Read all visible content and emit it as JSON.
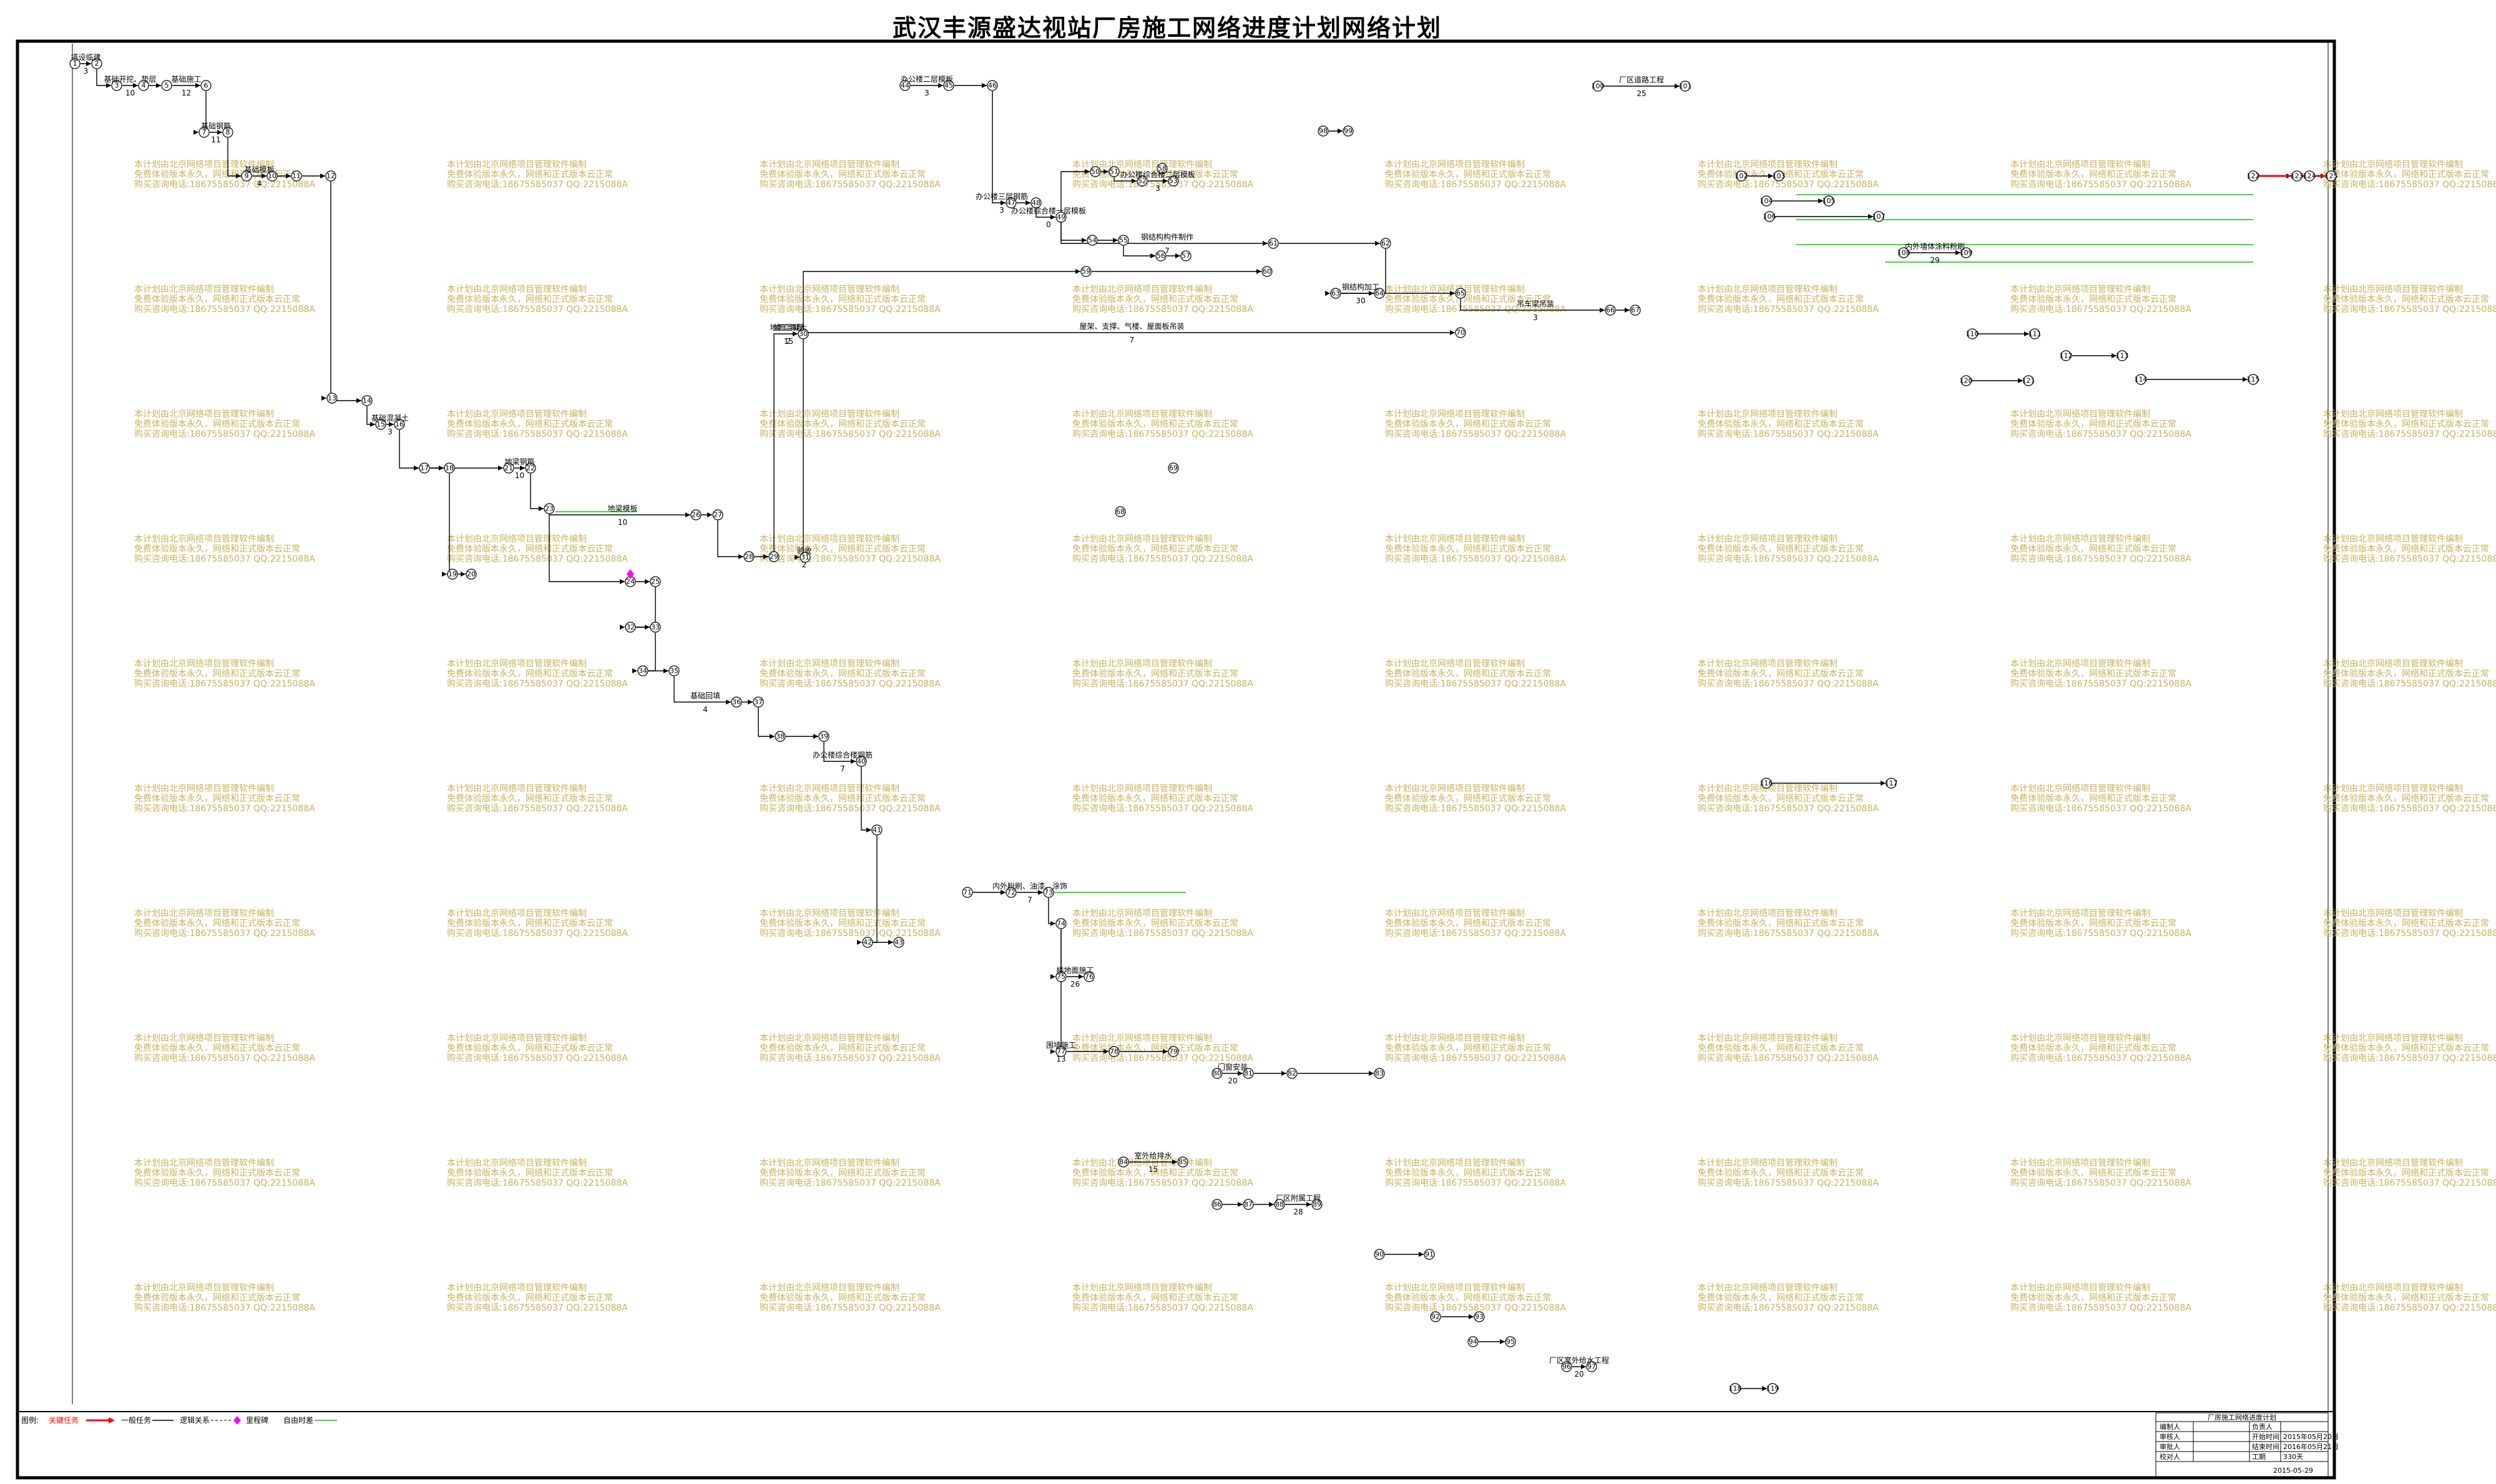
{
  "title": "武汉丰源盛达视站厂房施工网络进度计划网络计划",
  "watermark": [
    "本计划由北京网络项目管理软件编制",
    "免费体验版本永久，网络和正式版本云正常",
    "购买咨询电话:18675585037 QQ:2215088A"
  ],
  "colors": {
    "frame": "#000000",
    "critical": "#ff0000",
    "normal": "#000000",
    "free_float": "#00cc00",
    "virtual": "#000000",
    "marker": "#ff00ff",
    "watermark": "#c8b25a"
  },
  "legend": {
    "label": "图例:",
    "critical": "关键任务",
    "normal": "一般任务",
    "virtual": "逻辑关系",
    "milestone": "里程碑",
    "float": "自由时差"
  },
  "title_block": {
    "project": "厂房施工网络进度计划",
    "rows": [
      {
        "k": "编制人",
        "v": "负责人"
      },
      {
        "k": "审核人",
        "v": "开始时间",
        "v2": "2015年05月20日"
      },
      {
        "k": "审批人",
        "v": "结束时间",
        "v2": "2016年05月21日"
      },
      {
        "k": "校对人",
        "v": "工期",
        "v2": "330天"
      }
    ],
    "date": "2015-05-29"
  },
  "tasks": [
    {
      "label": "搭设临建",
      "dur": "3"
    },
    {
      "label": "基础开挖、垫层",
      "dur": "10"
    },
    {
      "label": "基础施工",
      "dur": "12"
    },
    {
      "label": "基础钢筋",
      "dur": "11"
    },
    {
      "label": "基础模板",
      "dur": "4"
    },
    {
      "label": "基础混凝土",
      "dur": "3"
    },
    {
      "label": "地梁钢筋",
      "dur": "10"
    },
    {
      "label": "地梁模板",
      "dur": "10"
    },
    {
      "label": "地面混凝土",
      "dur": "2"
    },
    {
      "label": "基础回填",
      "dur": "4"
    },
    {
      "label": "办公楼综合楼钢筋",
      "dur": "7"
    },
    {
      "label": "办公楼二层模板",
      "dur": "3"
    },
    {
      "label": "办公楼三层钢筋",
      "dur": "3"
    },
    {
      "label": "办公楼综合楼一层模板",
      "dur": "0"
    },
    {
      "label": "办公楼综合楼二层模板",
      "dur": "3"
    },
    {
      "label": "钢结构构件制作",
      "dur": "7"
    },
    {
      "label": "钢结构加工",
      "dur": "30"
    },
    {
      "label": "吊车梁吊装",
      "dur": "3"
    },
    {
      "label": "屋架、支撑、气楼、屋面板吊装",
      "dur": "7"
    },
    {
      "label": "内外粉刷、油漆、涂饰",
      "dur": "7"
    },
    {
      "label": "楼地面施工",
      "dur": "26"
    },
    {
      "label": "围墙施工",
      "dur": "13"
    },
    {
      "label": "门窗安装",
      "dur": "20"
    },
    {
      "label": "室外给排水",
      "dur": "15"
    },
    {
      "label": "厂区附属工程",
      "dur": "28"
    },
    {
      "label": "厂区室外给水工程",
      "dur": "20"
    },
    {
      "label": "厂区道路工程",
      "dur": "25"
    },
    {
      "label": "内外墙体涂料粉刷",
      "dur": "29"
    },
    {
      "label": "竣工清理",
      "dur": "15"
    },
    {
      "label": "验收",
      "dur": "2"
    }
  ]
}
